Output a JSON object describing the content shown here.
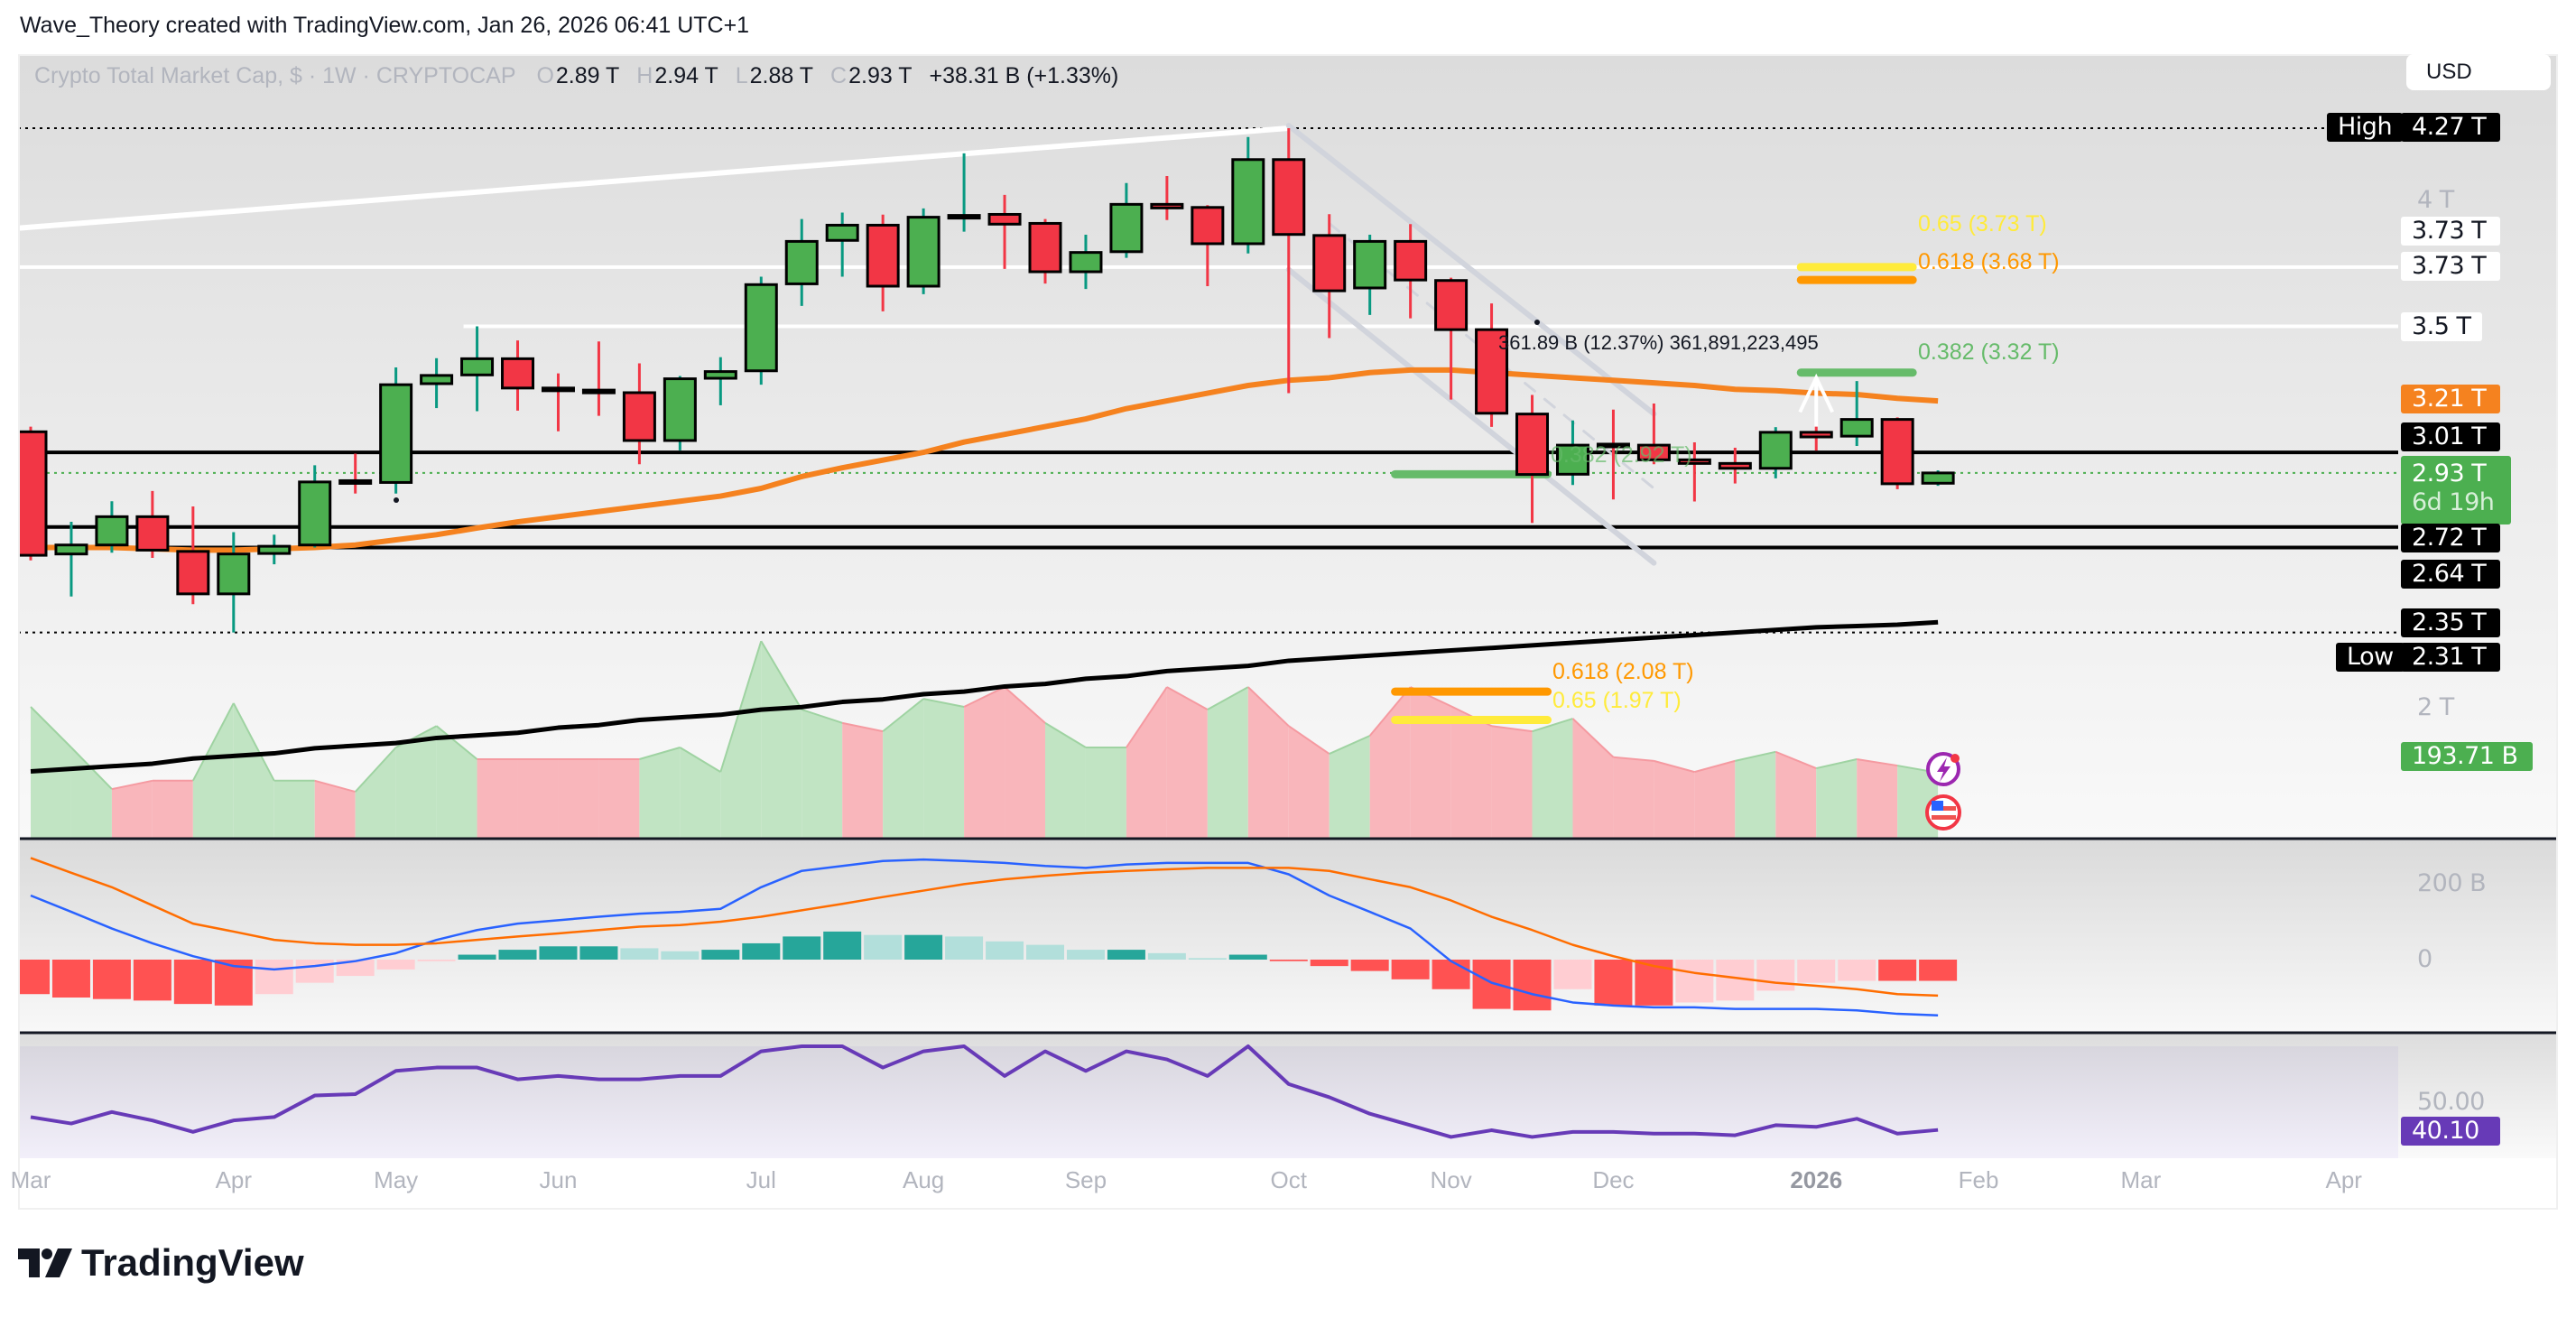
{
  "header": {
    "credit": "Wave_Theory created with TradingView.com, Jan 26, 2026 06:41 UTC+1"
  },
  "legend": {
    "symbol": "Crypto Total Market Cap, $ · 1W · CRYPTOCAP",
    "o_key": "O",
    "o": "2.89 T",
    "h_key": "H",
    "h": "2.94 T",
    "l_key": "L",
    "l": "2.88 T",
    "c_key": "C",
    "c": "2.93 T",
    "change": "+38.31 B (+1.33%)"
  },
  "currency_button": "USD",
  "price_axis": {
    "high_tag": "High",
    "high": "4.27 T",
    "t4": "4 T",
    "l373a": "3.73 T",
    "l373b": "3.73 T",
    "l35": "3.5 T",
    "ma50": "3.21 T",
    "l301": "3.01 T",
    "last": "2.93 T",
    "countdown": "6d 19h",
    "l272": "2.72 T",
    "l264": "2.64 T",
    "ma200": "2.35 T",
    "low_tag": "Low",
    "low": "2.31 T",
    "t2": "2 T",
    "volume": "193.71 B"
  },
  "macd_axis": {
    "t200": "200 B",
    "t0": "0"
  },
  "rsi_axis": {
    "t50": "50.00",
    "value": "40.10"
  },
  "annotations": {
    "fib_065_top": "0.65 (3.73 T)",
    "fib_0618_top": "0.618 (3.68 T)",
    "fib_0382_top": "0.382 (3.32 T)",
    "fib_0382_mid": "0.382 (2.92 T)",
    "fib_0618_bottom": "0.618 (2.08 T)",
    "fib_065_bottom": "0.65 (1.97 T)",
    "measure": "361.89 B (12.37%) 361,891,223,495"
  },
  "time_axis": [
    {
      "label": "Mar",
      "date": "2025-03-03"
    },
    {
      "label": "Apr",
      "date": "2025-04-07"
    },
    {
      "label": "May",
      "date": "2025-05-05"
    },
    {
      "label": "Jun",
      "date": "2025-06-02"
    },
    {
      "label": "Jul",
      "date": "2025-07-07"
    },
    {
      "label": "Aug",
      "date": "2025-08-04"
    },
    {
      "label": "Sep",
      "date": "2025-09-01"
    },
    {
      "label": "Oct",
      "date": "2025-10-06"
    },
    {
      "label": "Nov",
      "date": "2025-11-03"
    },
    {
      "label": "Dec",
      "date": "2025-12-01"
    },
    {
      "label": "2026",
      "date": "2026-01-05"
    },
    {
      "label": "Feb",
      "date": "2026-02-02"
    },
    {
      "label": "Mar",
      "date": "2026-03-02"
    },
    {
      "label": "Apr",
      "date": "2026-04-06"
    }
  ],
  "branding": {
    "logo_text": "TradingView"
  },
  "icons": {
    "events": "lightning-icon",
    "economic": "us-flag-icon"
  },
  "colors": {
    "up": "#4caf50",
    "down": "#f23645",
    "up_wick": "#089981",
    "down_wick": "#f23645",
    "ma50": "#f5821f",
    "ma200": "#000000",
    "macd": "#2962ff",
    "signal": "#ff6d00",
    "rsi": "#673ab7",
    "fib_yellow": "#ffeb3b",
    "fib_orange": "#ff9800",
    "fib_green": "#66bb6a"
  },
  "chart_data": {
    "type": "candlestick",
    "interval": "1W",
    "price_unit": "T USD",
    "candles": [
      [
        "2025-03-03",
        3.09,
        3.11,
        2.59,
        2.61
      ],
      [
        "2025-03-10",
        2.615,
        2.74,
        2.45,
        2.65
      ],
      [
        "2025-03-17",
        2.65,
        2.82,
        2.62,
        2.76
      ],
      [
        "2025-03-24",
        2.76,
        2.86,
        2.6,
        2.63
      ],
      [
        "2025-03-31",
        2.625,
        2.8,
        2.42,
        2.46
      ],
      [
        "2025-04-07",
        2.46,
        2.7,
        2.31,
        2.615
      ],
      [
        "2025-04-14",
        2.617,
        2.69,
        2.575,
        2.645
      ],
      [
        "2025-04-21",
        2.65,
        2.96,
        2.64,
        2.895
      ],
      [
        "2025-04-28",
        2.9,
        3.005,
        2.85,
        2.898
      ],
      [
        "2025-05-05",
        2.893,
        3.34,
        2.85,
        3.273
      ],
      [
        "2025-05-12",
        3.277,
        3.376,
        3.182,
        3.309
      ],
      [
        "2025-05-19",
        3.311,
        3.5,
        3.17,
        3.374
      ],
      [
        "2025-05-26",
        3.374,
        3.445,
        3.172,
        3.26
      ],
      [
        "2025-06-02",
        3.26,
        3.317,
        3.092,
        3.258
      ],
      [
        "2025-06-09",
        3.252,
        3.441,
        3.152,
        3.248
      ],
      [
        "2025-06-16",
        3.242,
        3.356,
        2.964,
        3.056
      ],
      [
        "2025-06-23",
        3.056,
        3.307,
        3.018,
        3.296
      ],
      [
        "2025-06-30",
        3.298,
        3.38,
        3.193,
        3.324
      ],
      [
        "2025-07-07",
        3.327,
        3.693,
        3.273,
        3.662
      ],
      [
        "2025-07-14",
        3.665,
        3.917,
        3.579,
        3.83
      ],
      [
        "2025-07-21",
        3.834,
        3.942,
        3.693,
        3.893
      ],
      [
        "2025-07-28",
        3.893,
        3.934,
        3.558,
        3.656
      ],
      [
        "2025-08-04",
        3.656,
        3.958,
        3.625,
        3.924
      ],
      [
        "2025-08-11",
        3.928,
        4.172,
        3.868,
        3.931
      ],
      [
        "2025-08-18",
        3.935,
        4.011,
        3.723,
        3.897
      ],
      [
        "2025-08-25",
        3.9,
        3.917,
        3.666,
        3.712
      ],
      [
        "2025-09-01",
        3.712,
        3.856,
        3.645,
        3.787
      ],
      [
        "2025-09-08",
        3.79,
        4.057,
        3.766,
        3.974
      ],
      [
        "2025-09-15",
        3.974,
        4.084,
        3.913,
        3.96
      ],
      [
        "2025-09-22",
        3.962,
        3.971,
        3.656,
        3.821
      ],
      [
        "2025-09-29",
        3.821,
        4.236,
        3.783,
        4.148
      ],
      [
        "2025-10-06",
        4.148,
        4.27,
        3.24,
        3.857
      ],
      [
        "2025-10-13",
        3.853,
        3.936,
        3.454,
        3.638
      ],
      [
        "2025-10-20",
        3.649,
        3.856,
        3.544,
        3.83
      ],
      [
        "2025-10-27",
        3.83,
        3.897,
        3.531,
        3.68
      ],
      [
        "2025-11-03",
        3.678,
        3.689,
        3.215,
        3.487
      ],
      [
        "2025-11-10",
        3.487,
        3.589,
        3.109,
        3.162
      ],
      [
        "2025-11-17",
        3.159,
        3.233,
        2.736,
        2.924
      ],
      [
        "2025-11-24",
        2.925,
        3.134,
        2.883,
        3.038
      ],
      [
        "2025-12-01",
        3.042,
        3.176,
        2.827,
        3.04
      ],
      [
        "2025-12-08",
        3.038,
        3.2,
        2.964,
        2.981
      ],
      [
        "2025-12-15",
        2.981,
        3.049,
        2.819,
        2.967
      ],
      [
        "2025-12-22",
        2.967,
        3.028,
        2.889,
        2.948
      ],
      [
        "2025-12-29",
        2.948,
        3.108,
        2.909,
        3.088
      ],
      [
        "2026-01-05",
        3.088,
        3.213,
        3.017,
        3.07
      ],
      [
        "2026-01-12",
        3.073,
        3.287,
        3.035,
        3.138
      ],
      [
        "2026-01-19",
        3.138,
        3.146,
        2.867,
        2.888
      ],
      [
        "2026-01-26",
        2.89,
        2.94,
        2.88,
        2.93
      ]
    ],
    "volume_B": [
      390,
      269,
      145,
      170,
      170,
      401,
      170,
      170,
      137,
      269,
      333,
      234,
      234,
      234,
      234,
      234,
      269,
      196,
      586,
      382,
      342,
      317,
      414,
      390,
      449,
      342,
      269,
      269,
      449,
      382,
      449,
      333,
      250,
      304,
      449,
      392,
      333,
      317,
      355,
      240,
      229,
      196,
      229,
      256,
      207,
      234,
      215,
      193.71
    ],
    "ma50": [
      2.64,
      2.64,
      2.64,
      2.635,
      2.63,
      2.63,
      2.635,
      2.64,
      2.65,
      2.67,
      2.69,
      2.716,
      2.74,
      2.76,
      2.78,
      2.8,
      2.82,
      2.84,
      2.87,
      2.916,
      2.95,
      2.98,
      3.01,
      3.05,
      3.08,
      3.11,
      3.14,
      3.18,
      3.21,
      3.24,
      3.27,
      3.29,
      3.3,
      3.32,
      3.33,
      3.33,
      3.32,
      3.31,
      3.3,
      3.29,
      3.28,
      3.27,
      3.255,
      3.25,
      3.24,
      3.235,
      3.22,
      3.21
    ],
    "ma200": [
      1.77,
      1.78,
      1.79,
      1.8,
      1.82,
      1.83,
      1.84,
      1.86,
      1.87,
      1.88,
      1.9,
      1.91,
      1.92,
      1.94,
      1.95,
      1.97,
      1.98,
      1.99,
      2.01,
      2.02,
      2.04,
      2.05,
      2.07,
      2.08,
      2.1,
      2.11,
      2.13,
      2.14,
      2.16,
      2.17,
      2.18,
      2.2,
      2.21,
      2.22,
      2.23,
      2.24,
      2.25,
      2.26,
      2.27,
      2.28,
      2.29,
      2.3,
      2.31,
      2.32,
      2.33,
      2.335,
      2.34,
      2.35
    ],
    "macd_B": [
      169,
      126,
      82,
      43,
      9,
      -17,
      -26,
      -17,
      -4,
      17,
      52,
      78,
      95,
      104,
      113,
      121,
      126,
      134,
      191,
      234,
      247,
      260,
      264,
      260,
      255,
      247,
      242,
      251,
      255,
      255,
      255,
      225,
      169,
      126,
      82,
      -4,
      -61,
      -91,
      -113,
      -121,
      -126,
      -126,
      -130,
      -130,
      -130,
      -134,
      -143,
      -147
    ],
    "signal_B": [
      268,
      229,
      191,
      143,
      95,
      74,
      52,
      43,
      39,
      39,
      43,
      52,
      61,
      69,
      78,
      87,
      91,
      100,
      113,
      130,
      147,
      165,
      182,
      199,
      212,
      221,
      229,
      234,
      238,
      242,
      242,
      242,
      234,
      212,
      191,
      156,
      113,
      78,
      39,
      9,
      -17,
      -35,
      -48,
      -61,
      -69,
      -78,
      -91,
      -95
    ],
    "hist_B": [
      -91,
      -100,
      -104,
      -108,
      -117,
      -121,
      -91,
      -61,
      -43,
      -26,
      -4,
      13,
      26,
      35,
      35,
      30,
      22,
      26,
      43,
      61,
      74,
      65,
      65,
      61,
      48,
      39,
      26,
      26,
      17,
      4,
      13,
      -4,
      -17,
      -30,
      -52,
      -78,
      -130,
      -134,
      -78,
      -121,
      -121,
      -113,
      -108,
      -82,
      -61,
      -56,
      -56,
      -56
    ],
    "rsi": [
      44.7,
      42.4,
      46.5,
      43.5,
      39.4,
      43.5,
      44.7,
      52.4,
      52.9,
      61.2,
      62.4,
      62.4,
      58.2,
      59.4,
      58.2,
      58.2,
      59.4,
      59.4,
      68.2,
      70,
      70,
      62.4,
      68.2,
      70,
      59.4,
      68.2,
      61.2,
      68.2,
      65.3,
      59.4,
      70,
      56.5,
      51.8,
      45.9,
      41.8,
      37.6,
      40,
      37.6,
      39.4,
      39.4,
      38.8,
      38.8,
      38.2,
      41.8,
      41.2,
      44.1,
      38.8,
      40.1
    ],
    "rsi_band": [
      30,
      70
    ],
    "horizontal_levels": [
      {
        "price": 3.73,
        "color": "#ffffff",
        "style": "solid"
      },
      {
        "price": 3.5,
        "color": "#ffffff",
        "style": "solid",
        "from": "2025-05-19"
      },
      {
        "price": 3.01,
        "color": "#000000",
        "style": "solid"
      },
      {
        "price": 2.72,
        "color": "#000000",
        "style": "solid"
      },
      {
        "price": 2.64,
        "color": "#000000",
        "style": "solid"
      },
      {
        "price": 4.27,
        "color": "#000000",
        "style": "dotted"
      },
      {
        "price": 2.31,
        "color": "#000000",
        "style": "dotted"
      },
      {
        "price": 2.93,
        "color": "#4caf50",
        "style": "dotted"
      }
    ],
    "trendlines": [
      {
        "name": "resistance-trendline",
        "color": "#ffffff",
        "dash": false,
        "points": [
          [
            "2025-02-28",
            3.88
          ],
          [
            "2025-10-06",
            4.27
          ]
        ]
      },
      {
        "name": "channel-upper",
        "color": "#d1d4dc",
        "dash": false,
        "points": [
          [
            "2025-10-06",
            4.28
          ],
          [
            "2025-12-08",
            3.16
          ]
        ]
      },
      {
        "name": "channel-lower",
        "color": "#d1d4dc",
        "dash": false,
        "points": [
          [
            "2025-10-06",
            3.72
          ],
          [
            "2025-12-08",
            2.58
          ]
        ]
      },
      {
        "name": "channel-mid",
        "color": "#d1d4dc",
        "dash": true,
        "points": [
          [
            "2025-10-13",
            3.9
          ],
          [
            "2025-12-08",
            2.87
          ]
        ]
      }
    ],
    "fib_bars": [
      {
        "price": 3.73,
        "color": "#ffeb3b",
        "from": "2026-01-05",
        "to": "2026-01-19"
      },
      {
        "price": 3.68,
        "color": "#ff9800",
        "from": "2026-01-05",
        "to": "2026-01-19"
      },
      {
        "price": 3.32,
        "color": "#66bb6a",
        "from": "2026-01-05",
        "to": "2026-01-19"
      },
      {
        "price": 2.925,
        "color": "#66bb6a",
        "from": "2025-10-27",
        "to": "2025-11-17"
      },
      {
        "price": 2.08,
        "color": "#ff9800",
        "from": "2025-10-27",
        "to": "2025-11-17"
      },
      {
        "price": 1.97,
        "color": "#ffeb3b",
        "from": "2025-10-27",
        "to": "2025-11-17"
      }
    ],
    "arrow": {
      "date": "2026-01-05",
      "from": 3.11,
      "to": 3.3
    }
  }
}
